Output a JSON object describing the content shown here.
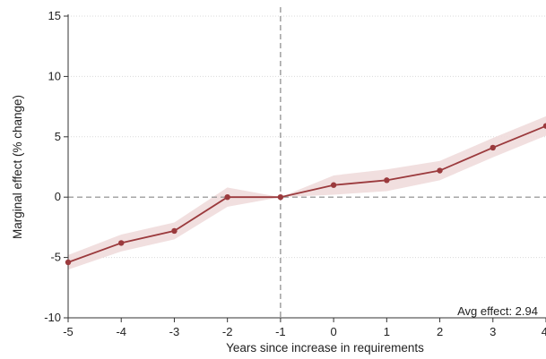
{
  "chart_data": {
    "type": "line",
    "title": "",
    "xlabel": "Years since increase in requirements",
    "ylabel": "Marginal effect (% change)",
    "x": [
      -5,
      -4,
      -3,
      -2,
      -1,
      0,
      1,
      2,
      3,
      4
    ],
    "x_ticks": [
      "-5",
      "-4",
      "-3",
      "-2",
      "-1",
      "0",
      "1",
      "2",
      "3",
      "4"
    ],
    "y_ticks": [
      "-10",
      "-5",
      "0",
      "5",
      "10",
      "15"
    ],
    "xlim": [
      -5,
      4
    ],
    "ylim": [
      -10,
      15
    ],
    "grid": "horizontal dotted",
    "reference_lines": {
      "x": -1,
      "y": 0
    },
    "series": [
      {
        "values": [
          -5.4,
          -3.8,
          -2.8,
          0.0,
          0.0,
          1.0,
          1.4,
          2.2,
          4.1,
          5.9
        ],
        "ci_lower": [
          -6.0,
          -4.5,
          -3.5,
          -0.8,
          0.0,
          0.2,
          0.5,
          1.4,
          3.3,
          5.1
        ],
        "ci_upper": [
          -4.8,
          -3.1,
          -2.1,
          0.8,
          0.0,
          1.8,
          2.3,
          3.0,
          4.9,
          6.7
        ],
        "color": "#9b3a3d",
        "band_color": "#f0dcdc"
      }
    ],
    "annotation": "Avg effect: 2.94"
  }
}
